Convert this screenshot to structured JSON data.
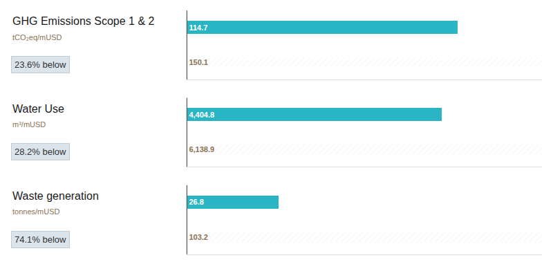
{
  "chart_data": [
    {
      "type": "bar",
      "orientation": "horizontal",
      "title": "GHG Emissions Scope 1 & 2",
      "subtitle": "tCO₂eq/mUSD",
      "annotations": [
        "23.6% below"
      ],
      "categories": [
        null,
        null
      ],
      "values": [
        114.7,
        150.1
      ],
      "colors": [
        "#29B5C3",
        "#f0f0f0"
      ],
      "xlim": [
        0,
        150.1
      ],
      "data_labels": true,
      "tick_labels": false,
      "grid": false
    },
    {
      "type": "bar",
      "orientation": "horizontal",
      "title": "Water Use",
      "subtitle": "m³/mUSD",
      "annotations": [
        "28.2% below"
      ],
      "categories": [
        null,
        null
      ],
      "values": [
        4404.8,
        6138.9
      ],
      "value_labels": [
        "4,404.8",
        "6,138.9"
      ],
      "colors": [
        "#29B5C3",
        "#f0f0f0"
      ],
      "xlim": [
        0,
        6138.9
      ],
      "data_labels": true,
      "tick_labels": false,
      "grid": false
    },
    {
      "type": "bar",
      "orientation": "horizontal",
      "title": "Waste generation",
      "subtitle": "tonnes/mUSD",
      "annotations": [
        "74.1% below"
      ],
      "categories": [
        null,
        null
      ],
      "values": [
        26.8,
        103.2
      ],
      "colors": [
        "#29B5C3",
        "#f0f0f0"
      ],
      "xlim": [
        0,
        103.2
      ],
      "data_labels": true,
      "tick_labels": false,
      "grid": false
    }
  ]
}
